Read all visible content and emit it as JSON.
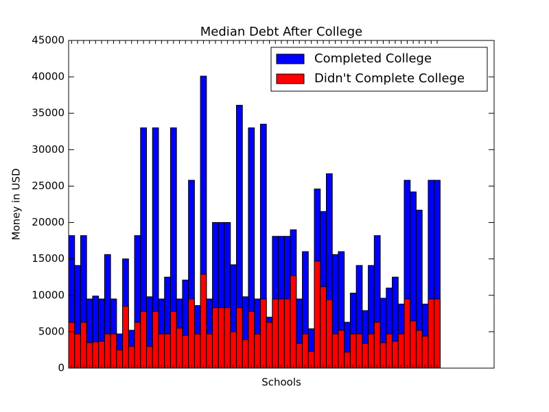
{
  "chart_data": {
    "type": "bar",
    "title": "Median Debt After College",
    "xlabel": "Schools",
    "ylabel": "Money in USD",
    "categories": [
      null,
      null,
      null,
      null,
      null,
      null,
      null,
      null,
      null,
      null,
      null,
      null,
      null,
      null,
      null,
      null,
      null,
      null,
      null,
      null,
      null,
      null,
      null,
      null,
      null,
      null,
      null,
      null,
      null,
      null,
      null,
      null,
      null,
      null,
      null,
      null,
      null,
      null,
      null,
      null,
      null,
      null,
      null,
      null,
      null,
      null,
      null,
      null,
      null,
      null,
      null,
      null,
      null,
      null,
      null,
      null,
      null,
      null,
      null,
      null,
      null,
      null
    ],
    "series": [
      {
        "name": "Completed College",
        "color": "#0000ff",
        "values": [
          18200,
          14100,
          18200,
          9500,
          9900,
          9500,
          15600,
          9500,
          4700,
          15000,
          5200,
          18200,
          33000,
          9800,
          33000,
          9500,
          12500,
          33000,
          9500,
          12100,
          25800,
          8600,
          40100,
          9500,
          20000,
          20000,
          20000,
          14200,
          36100,
          9800,
          33000,
          9500,
          33500,
          7000,
          18100,
          18100,
          18100,
          19000,
          9500,
          16000,
          5400,
          24600,
          21500,
          26700,
          15600,
          16000,
          6300,
          10300,
          14100,
          7900,
          14100,
          18200,
          9600,
          11000,
          12500,
          8800,
          25800,
          24200,
          21700,
          8800,
          25800,
          25800
        ]
      },
      {
        "name": "Didn't Complete College",
        "color": "#ff0000",
        "values": [
          6300,
          4700,
          6300,
          3500,
          3600,
          3700,
          4700,
          4700,
          2500,
          8500,
          3000,
          6300,
          7800,
          3000,
          7800,
          4700,
          4700,
          7800,
          5500,
          4500,
          9500,
          4700,
          12900,
          4700,
          8300,
          8300,
          8300,
          5000,
          8300,
          3900,
          7800,
          4700,
          9500,
          6300,
          9500,
          9500,
          9500,
          12700,
          3400,
          4700,
          2300,
          14700,
          11200,
          9400,
          4700,
          5200,
          2200,
          4700,
          4700,
          3400,
          4700,
          6300,
          3500,
          4700,
          3700,
          4700,
          9500,
          6500,
          5200,
          4400,
          9500,
          9500
        ]
      }
    ],
    "xlim": [
      0,
      71
    ],
    "ylim": [
      0,
      45000
    ],
    "yticks": [
      0,
      5000,
      10000,
      15000,
      20000,
      25000,
      30000,
      35000,
      40000,
      45000
    ],
    "legend": "upper right"
  }
}
